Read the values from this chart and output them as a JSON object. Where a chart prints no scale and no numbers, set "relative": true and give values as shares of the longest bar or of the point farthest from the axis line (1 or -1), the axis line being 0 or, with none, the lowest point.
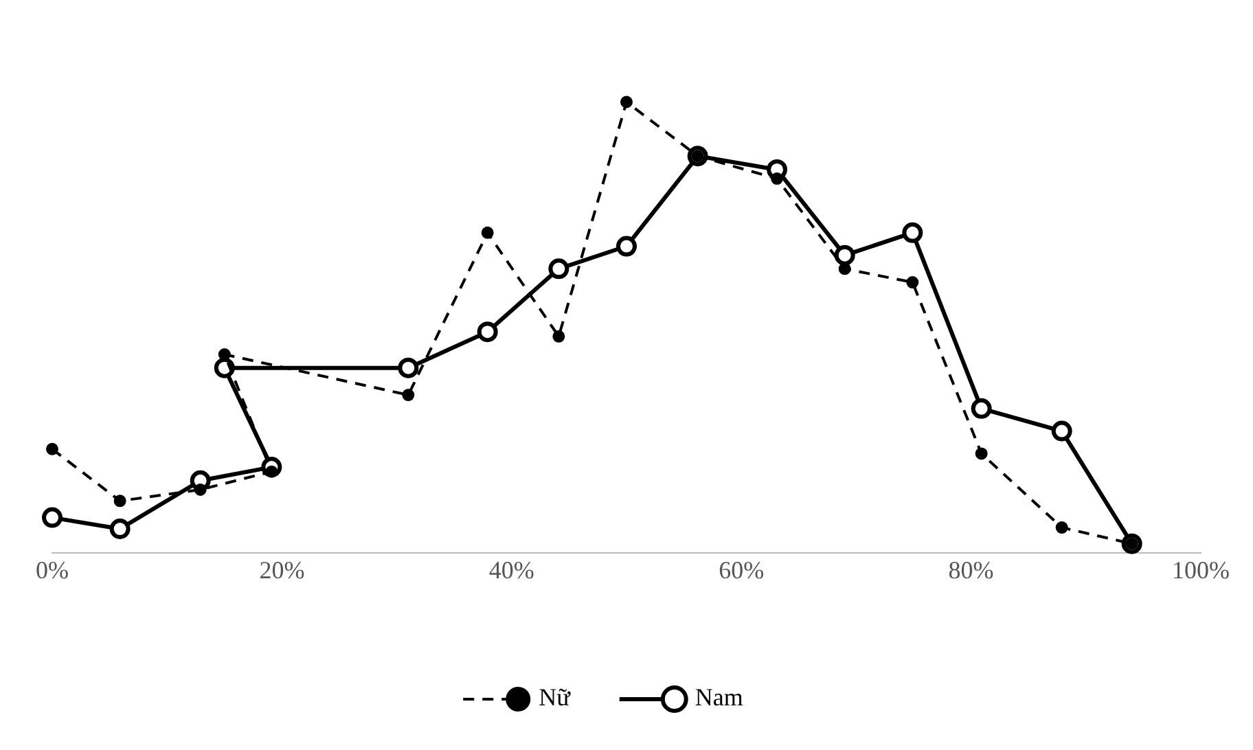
{
  "chart_data": {
    "type": "line",
    "relative": true,
    "xlim": [
      0,
      100
    ],
    "xticks": [
      {
        "value": 0,
        "label": "0%"
      },
      {
        "value": 20,
        "label": "20%"
      },
      {
        "value": 40,
        "label": "40%"
      },
      {
        "value": 60,
        "label": "60%"
      },
      {
        "value": 80,
        "label": "80%"
      },
      {
        "value": 100,
        "label": "100%"
      }
    ],
    "grid": false,
    "legend": "bottom",
    "series": [
      {
        "name": "Nữ",
        "color": "#000000",
        "marker": "circle",
        "line_style": "dashed",
        "x": [
          0,
          5.9,
          12.9,
          19.1,
          15,
          31,
          37.9,
          44.1,
          50,
          56.2,
          63.1,
          69,
          74.9,
          80.9,
          87.9,
          94
        ],
        "values": [
          0.23,
          0.115,
          0.14,
          0.18,
          0.44,
          0.35,
          0.71,
          0.48,
          1,
          0.88,
          0.83,
          0.63,
          0.6,
          0.22,
          0.056,
          0.02
        ]
      },
      {
        "name": "Nam",
        "color": "#000000",
        "marker": "circle",
        "line_style": "solid",
        "x": [
          0,
          5.9,
          12.9,
          19.1,
          15,
          31,
          37.9,
          44.1,
          50,
          56.2,
          63.1,
          69,
          74.9,
          80.9,
          87.9,
          94
        ],
        "values": [
          0.078,
          0.053,
          0.16,
          0.19,
          0.41,
          0.41,
          0.49,
          0.63,
          0.68,
          0.88,
          0.85,
          0.66,
          0.71,
          0.32,
          0.27,
          0.02
        ]
      }
    ]
  }
}
